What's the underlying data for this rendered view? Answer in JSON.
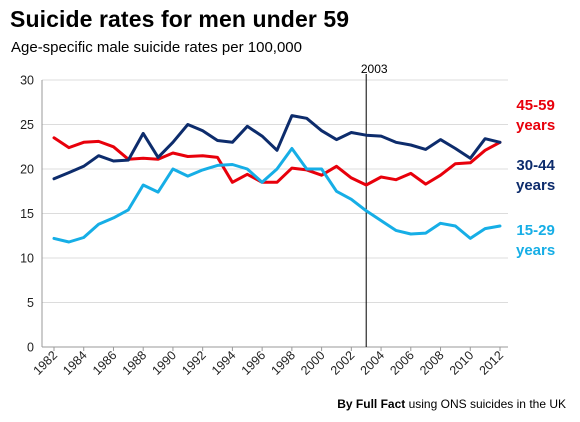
{
  "title": "Suicide rates for men under 59",
  "subtitle": "Age-specific male suicide rates per 100,000",
  "source": {
    "author": "By Full Fact",
    "text": "using ONS suicides in the UK"
  },
  "chart_data": {
    "type": "line",
    "title": "Suicide rates for men under 59",
    "subtitle": "Age-specific male suicide rates per 100,000",
    "xlabel": "",
    "ylabel": "",
    "x": [
      1982,
      1983,
      1984,
      1985,
      1986,
      1987,
      1988,
      1989,
      1990,
      1991,
      1992,
      1993,
      1994,
      1995,
      1996,
      1997,
      1998,
      1999,
      2000,
      2001,
      2002,
      2003,
      2004,
      2005,
      2006,
      2007,
      2008,
      2009,
      2010,
      2011,
      2012
    ],
    "x_tick_labels": [
      "1982",
      "1984",
      "1986",
      "1988",
      "1990",
      "1992",
      "1994",
      "1996",
      "1998",
      "2000",
      "2002",
      "2004",
      "2006",
      "2008",
      "2010",
      "2012"
    ],
    "ylim": [
      0,
      30
    ],
    "y_ticks": [
      0,
      5,
      10,
      15,
      20,
      25,
      30
    ],
    "grid": "horizontal",
    "annotation": {
      "x": 2003,
      "label": "2003"
    },
    "series": [
      {
        "name": "45-59 years",
        "label_lines": [
          "45-59",
          "years"
        ],
        "color": "#e8000b",
        "values": [
          23.5,
          22.4,
          23.0,
          23.1,
          22.5,
          21.1,
          21.2,
          21.1,
          21.8,
          21.4,
          21.5,
          21.3,
          18.5,
          19.4,
          18.5,
          18.5,
          20.1,
          19.9,
          19.3,
          20.3,
          19.0,
          18.2,
          19.1,
          18.8,
          19.5,
          18.3,
          19.3,
          20.6,
          20.7,
          22.1,
          23.0
        ]
      },
      {
        "name": "30-44 years",
        "label_lines": [
          "30-44",
          "years"
        ],
        "color": "#0d2c6c",
        "values": [
          18.9,
          19.6,
          20.3,
          21.5,
          20.9,
          21.0,
          24.0,
          21.3,
          23.0,
          25.0,
          24.3,
          23.2,
          23.0,
          24.8,
          23.7,
          22.1,
          26.0,
          25.7,
          24.3,
          23.3,
          24.1,
          23.8,
          23.7,
          23.0,
          22.7,
          22.2,
          23.3,
          22.3,
          21.2,
          23.4,
          23.0
        ]
      },
      {
        "name": "15-29 years",
        "label_lines": [
          "15-29",
          "years"
        ],
        "color": "#16aee6",
        "values": [
          12.2,
          11.8,
          12.3,
          13.8,
          14.5,
          15.4,
          18.2,
          17.4,
          20.0,
          19.2,
          19.9,
          20.4,
          20.5,
          20.0,
          18.5,
          20.0,
          22.3,
          20.0,
          20.0,
          17.5,
          16.6,
          15.3,
          14.2,
          13.1,
          12.7,
          12.8,
          13.9,
          13.6,
          12.2,
          13.3,
          13.6
        ]
      }
    ]
  }
}
